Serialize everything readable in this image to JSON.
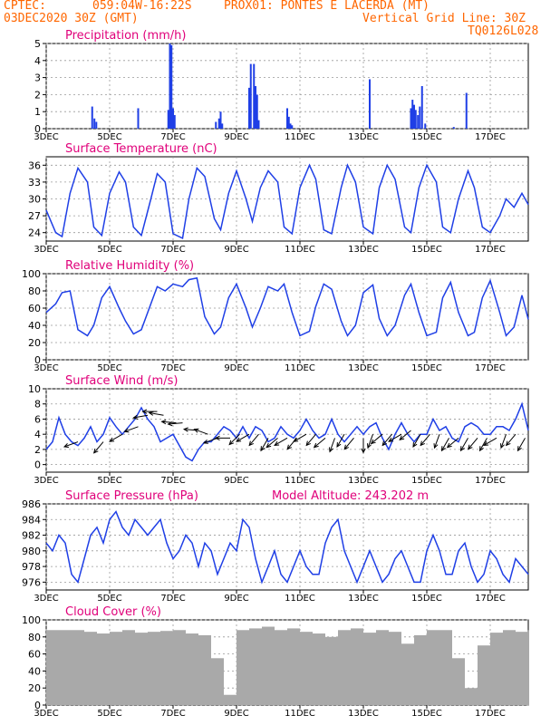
{
  "header": {
    "org": "CPTEC:",
    "coords": "059:04W-16:22S",
    "station": "PROX01: PONTES E LACERDA (MT)",
    "init_time": "03DEC2020 30Z (GMT)",
    "grid_note": "Vertical Grid Line: 30Z",
    "model_code": "TQ0126L028"
  },
  "x_ticks": [
    "3DEC",
    "5DEC",
    "7DEC",
    "9DEC",
    "11DEC",
    "13DEC",
    "15DEC",
    "17DEC"
  ],
  "x_tick_days": [
    0,
    2,
    4,
    6,
    8,
    10,
    12,
    14
  ],
  "x_range_days": [
    0,
    15.2
  ],
  "colors": {
    "title": "#e0007a",
    "series": "#1f3fe6",
    "bar": "#1f3fe6",
    "cloud": "#a9a9a9",
    "header": "#ff6600",
    "arrow": "#000000"
  },
  "chart_data": [
    {
      "type": "bar",
      "title": "Precipitation (mm/h)",
      "yticks": [
        0,
        1,
        2,
        3,
        4,
        5
      ],
      "ylim": [
        0,
        5
      ],
      "grid": true,
      "x": [
        1.45,
        1.52,
        1.58,
        2.9,
        3.85,
        3.9,
        3.95,
        4.0,
        4.05,
        5.35,
        5.45,
        5.5,
        5.55,
        6.4,
        6.45,
        6.55,
        6.6,
        6.65,
        6.7,
        7.6,
        7.65,
        7.7,
        7.75,
        10.2,
        11.5,
        11.55,
        11.6,
        11.65,
        11.72,
        11.78,
        11.85,
        11.95,
        12.85,
        13.25
      ],
      "values": [
        1.3,
        0.6,
        0.4,
        1.2,
        1.1,
        5.0,
        4.9,
        1.2,
        0.8,
        0.4,
        0.6,
        1.0,
        0.3,
        2.4,
        3.8,
        3.8,
        2.5,
        2.0,
        0.5,
        1.2,
        0.7,
        0.3,
        0.2,
        2.9,
        1.2,
        1.7,
        1.4,
        1.1,
        0.8,
        1.3,
        2.5,
        0.3,
        0.1,
        2.1
      ]
    },
    {
      "type": "line",
      "title": "Surface Temperature (nC)",
      "yticks": [
        24,
        27,
        30,
        33,
        36
      ],
      "ylim": [
        22.5,
        37.5
      ],
      "grid": true,
      "x": [
        0,
        0.3,
        0.5,
        0.75,
        1.0,
        1.3,
        1.5,
        1.75,
        2.0,
        2.3,
        2.5,
        2.75,
        3.0,
        3.3,
        3.5,
        3.75,
        4.0,
        4.3,
        4.5,
        4.75,
        5.0,
        5.3,
        5.5,
        5.75,
        6.0,
        6.3,
        6.5,
        6.75,
        7.0,
        7.3,
        7.5,
        7.75,
        8.0,
        8.3,
        8.5,
        8.75,
        9.0,
        9.3,
        9.5,
        9.75,
        10.0,
        10.3,
        10.5,
        10.75,
        11.0,
        11.3,
        11.5,
        11.75,
        12.0,
        12.3,
        12.5,
        12.75,
        13.0,
        13.3,
        13.5,
        13.75,
        14.0,
        14.3,
        14.5,
        14.75,
        15.0,
        15.2
      ],
      "y": [
        28,
        24,
        23.3,
        31,
        35.5,
        33,
        25,
        23.5,
        31,
        34.8,
        33,
        25,
        23.5,
        30,
        34.5,
        33,
        23.8,
        23,
        30,
        35.5,
        34,
        26.5,
        24.5,
        31,
        35,
        30,
        26,
        32,
        35,
        33,
        25,
        23.8,
        32,
        36,
        33.5,
        24.5,
        23.8,
        32,
        36,
        33,
        25,
        23.8,
        32,
        36,
        33.5,
        25,
        24,
        32,
        36,
        33,
        25,
        24,
        30,
        35,
        32,
        25,
        24,
        27,
        30,
        28.5,
        31,
        29
      ]
    },
    {
      "type": "line",
      "title": "Relative Humidity (%)",
      "yticks": [
        0,
        20,
        40,
        60,
        80,
        100
      ],
      "ylim": [
        0,
        100
      ],
      "grid": true,
      "x": [
        0,
        0.3,
        0.5,
        0.75,
        1.0,
        1.3,
        1.5,
        1.75,
        2.0,
        2.3,
        2.5,
        2.75,
        3.0,
        3.3,
        3.5,
        3.75,
        4.0,
        4.3,
        4.5,
        4.75,
        5.0,
        5.3,
        5.5,
        5.75,
        6.0,
        6.3,
        6.5,
        6.75,
        7.0,
        7.3,
        7.5,
        7.75,
        8.0,
        8.3,
        8.5,
        8.75,
        9.0,
        9.3,
        9.5,
        9.75,
        10.0,
        10.3,
        10.5,
        10.75,
        11.0,
        11.3,
        11.5,
        11.75,
        12.0,
        12.3,
        12.5,
        12.75,
        13.0,
        13.3,
        13.5,
        13.75,
        14.0,
        14.3,
        14.5,
        14.75,
        15.0,
        15.2
      ],
      "y": [
        55,
        65,
        78,
        80,
        35,
        28,
        40,
        72,
        85,
        60,
        45,
        30,
        35,
        65,
        85,
        80,
        88,
        85,
        93,
        95,
        50,
        30,
        38,
        72,
        88,
        60,
        38,
        60,
        85,
        80,
        88,
        55,
        28,
        33,
        62,
        88,
        82,
        45,
        28,
        40,
        78,
        87,
        48,
        28,
        40,
        75,
        88,
        55,
        28,
        32,
        72,
        90,
        55,
        28,
        32,
        72,
        92,
        55,
        28,
        38,
        75,
        47
      ]
    },
    {
      "type": "line",
      "title": "Surface Wind (m/s)",
      "yticks": [
        0,
        2,
        4,
        6,
        8,
        10
      ],
      "ylim": [
        -1,
        10
      ],
      "grid": true,
      "x": [
        0,
        0.2,
        0.4,
        0.6,
        0.8,
        1.0,
        1.2,
        1.4,
        1.6,
        1.8,
        2.0,
        2.2,
        2.4,
        2.6,
        2.8,
        3.0,
        3.2,
        3.4,
        3.6,
        3.8,
        4.0,
        4.2,
        4.4,
        4.6,
        4.8,
        5.0,
        5.2,
        5.4,
        5.6,
        5.8,
        6.0,
        6.2,
        6.4,
        6.6,
        6.8,
        7.0,
        7.2,
        7.4,
        7.6,
        7.8,
        8.0,
        8.2,
        8.4,
        8.6,
        8.8,
        9.0,
        9.2,
        9.4,
        9.6,
        9.8,
        10.0,
        10.2,
        10.4,
        10.6,
        10.8,
        11.0,
        11.2,
        11.4,
        11.6,
        11.8,
        12.0,
        12.2,
        12.4,
        12.6,
        12.8,
        13.0,
        13.2,
        13.4,
        13.6,
        13.8,
        14.0,
        14.2,
        14.4,
        14.6,
        14.8,
        15.0,
        15.2
      ],
      "y": [
        2,
        3,
        6.2,
        4,
        3,
        2.5,
        3.5,
        5,
        3,
        4,
        6.2,
        5,
        4,
        5,
        6,
        7.5,
        6,
        5,
        3,
        3.5,
        4,
        2.5,
        1,
        0.5,
        2,
        3,
        3,
        4,
        5,
        4.5,
        3.5,
        5,
        3.5,
        5,
        4.5,
        3,
        3.5,
        5,
        4,
        3.5,
        4.5,
        6,
        4.5,
        3.5,
        4,
        6,
        4,
        3,
        4,
        5,
        4,
        5,
        5.5,
        3.5,
        2,
        4,
        5.5,
        4,
        3,
        4,
        4,
        6,
        4.5,
        5,
        3.5,
        3,
        5,
        5.5,
        5,
        4,
        4,
        5,
        5,
        4.5,
        6,
        8,
        4.5
      ],
      "arrows": {
        "x": [
          1.0,
          1.8,
          2.4,
          2.9,
          3.2,
          3.5,
          3.7,
          4.1,
          4.3,
          4.8,
          5.1,
          5.4,
          5.8,
          6.1,
          6.4,
          6.7,
          7.0,
          7.3,
          7.6,
          7.9,
          8.2,
          8.5,
          8.8,
          9.1,
          9.4,
          9.7,
          10.0,
          10.3,
          10.6,
          10.9,
          11.2,
          11.5,
          11.8,
          12.1,
          12.4,
          12.7,
          13.0,
          13.3,
          13.6,
          13.9,
          14.2,
          14.5,
          14.8,
          15.1
        ],
        "speed": [
          3,
          3,
          4,
          5,
          6.5,
          7,
          6.5,
          5.5,
          5.5,
          4.5,
          4,
          3.5,
          3.5,
          4,
          4,
          4,
          3.5,
          3.5,
          3.5,
          3.5,
          4,
          4,
          3.5,
          3.5,
          4,
          3.5,
          3.5,
          4,
          4,
          4,
          4,
          4.5,
          4,
          4,
          4,
          3.5,
          3.5,
          3.5,
          3.5,
          3.5,
          3.5,
          4,
          4,
          3.5
        ],
        "dir": [
          200,
          230,
          210,
          200,
          190,
          180,
          170,
          175,
          185,
          175,
          160,
          200,
          180,
          225,
          210,
          230,
          240,
          220,
          210,
          230,
          210,
          230,
          220,
          250,
          240,
          230,
          270,
          250,
          220,
          230,
          210,
          220,
          240,
          230,
          250,
          240,
          220,
          240,
          230,
          240,
          210,
          250,
          230,
          240
        ]
      }
    },
    {
      "type": "line",
      "title": "Surface Pressure (hPa)",
      "annotation": "Model Altitude: 243.202 m",
      "yticks": [
        976,
        978,
        980,
        982,
        984,
        986
      ],
      "ylim": [
        975,
        986
      ],
      "grid": true,
      "x": [
        0,
        0.2,
        0.4,
        0.6,
        0.8,
        1.0,
        1.2,
        1.4,
        1.6,
        1.8,
        2.0,
        2.2,
        2.4,
        2.6,
        2.8,
        3.0,
        3.2,
        3.4,
        3.6,
        3.8,
        4.0,
        4.2,
        4.4,
        4.6,
        4.8,
        5.0,
        5.2,
        5.4,
        5.6,
        5.8,
        6.0,
        6.2,
        6.4,
        6.6,
        6.8,
        7.0,
        7.2,
        7.4,
        7.6,
        7.8,
        8.0,
        8.2,
        8.4,
        8.6,
        8.8,
        9.0,
        9.2,
        9.4,
        9.6,
        9.8,
        10.0,
        10.2,
        10.4,
        10.6,
        10.8,
        11.0,
        11.2,
        11.4,
        11.6,
        11.8,
        12.0,
        12.2,
        12.4,
        12.6,
        12.8,
        13.0,
        13.2,
        13.4,
        13.6,
        13.8,
        14.0,
        14.2,
        14.4,
        14.6,
        14.8,
        15.0,
        15.2
      ],
      "y": [
        981,
        980,
        982,
        981,
        977,
        976,
        979,
        982,
        983,
        981,
        984,
        985,
        983,
        982,
        984,
        983,
        982,
        983,
        984,
        981,
        979,
        980,
        982,
        981,
        978,
        981,
        980,
        977,
        979,
        981,
        980,
        984,
        983,
        979,
        976,
        978,
        980,
        977,
        976,
        978,
        980,
        978,
        977,
        977,
        981,
        983,
        984,
        980,
        978,
        976,
        978,
        980,
        978,
        976,
        977,
        979,
        980,
        978,
        976,
        976,
        980,
        982,
        980,
        977,
        977,
        980,
        981,
        978,
        976,
        977,
        980,
        979,
        977,
        976,
        979,
        978,
        977
      ]
    },
    {
      "type": "bar",
      "title": "Cloud Cover (%)",
      "yticks": [
        0,
        20,
        40,
        60,
        80,
        100
      ],
      "ylim": [
        0,
        100
      ],
      "grid": true,
      "x": [
        0,
        0.4,
        0.8,
        1.2,
        1.6,
        2.0,
        2.4,
        2.8,
        3.2,
        3.6,
        4.0,
        4.4,
        4.8,
        5.2,
        5.6,
        6.0,
        6.4,
        6.8,
        7.2,
        7.6,
        8.0,
        8.4,
        8.8,
        9.2,
        9.6,
        10.0,
        10.4,
        10.8,
        11.2,
        11.6,
        12.0,
        12.4,
        12.8,
        13.2,
        13.6,
        14.0,
        14.4,
        14.8,
        15.2
      ],
      "values": [
        88,
        88,
        88,
        86,
        84,
        86,
        88,
        85,
        86,
        87,
        88,
        84,
        82,
        55,
        12,
        88,
        90,
        92,
        88,
        90,
        86,
        84,
        80,
        88,
        90,
        85,
        88,
        86,
        72,
        82,
        88,
        88,
        55,
        20,
        70,
        85,
        88,
        86,
        88
      ]
    }
  ]
}
